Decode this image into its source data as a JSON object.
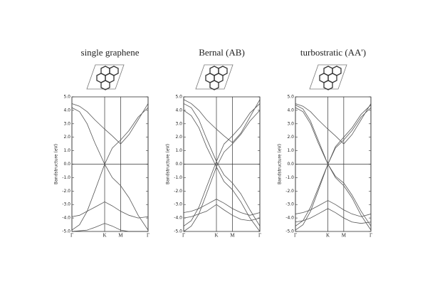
{
  "chart_data": [
    {
      "type": "line",
      "title": "single graphene",
      "ylabel": "Bandstructure (eV)",
      "x": [
        0,
        0.1,
        0.2,
        0.3,
        0.43,
        0.53,
        0.64,
        0.75,
        0.87,
        1
      ],
      "xlim": [
        0,
        1
      ],
      "xticks": [
        {
          "value": 0,
          "label": "Γ"
        },
        {
          "value": 0.43,
          "label": "K"
        },
        {
          "value": 0.64,
          "label": "M"
        },
        {
          "value": 1,
          "label": "Γ"
        }
      ],
      "ylim": [
        -5,
        5
      ],
      "yticks": [
        {
          "value": 5,
          "label": "5.0"
        },
        {
          "value": 4,
          "label": "4.0"
        },
        {
          "value": 3,
          "label": "3.0"
        },
        {
          "value": 2,
          "label": "2.0"
        },
        {
          "value": 1,
          "label": "1.0"
        },
        {
          "value": 0,
          "label": "0.0"
        },
        {
          "value": -1,
          "label": "-1.0"
        },
        {
          "value": -2,
          "label": "-2.0"
        },
        {
          "value": -3,
          "label": "-3.0"
        },
        {
          "value": -4,
          "label": "-4.0"
        },
        {
          "value": -5,
          "label": "-5.0"
        }
      ],
      "series": [
        {
          "color": "#555",
          "values": [
            -4.9,
            -4.5,
            -3.5,
            -2.0,
            0,
            -1.0,
            -1.6,
            -2.5,
            -3.8,
            -4.9
          ]
        },
        {
          "color": "#555",
          "values": [
            4.2,
            3.9,
            3.0,
            1.6,
            0,
            1.2,
            1.8,
            2.5,
            3.5,
            4.2
          ]
        },
        {
          "color": "#555",
          "values": [
            4.5,
            4.3,
            3.9,
            3.3,
            2.6,
            2.1,
            1.5,
            2.2,
            3.3,
            4.5
          ]
        },
        {
          "color": "#555",
          "values": [
            -3.9,
            -3.8,
            -3.5,
            -3.2,
            -2.8,
            -3.1,
            -3.5,
            -3.8,
            -4.0,
            -3.9
          ]
        },
        {
          "color": "#555",
          "values": [
            -5.0,
            -4.95,
            -4.9,
            -4.7,
            -4.4,
            -4.6,
            -4.9,
            -5.0,
            -5.0,
            -5.0
          ]
        }
      ]
    },
    {
      "type": "line",
      "title": "Bernal (AB)",
      "ylabel": "Bandstructure (eV)",
      "x": [
        0,
        0.1,
        0.2,
        0.3,
        0.43,
        0.53,
        0.64,
        0.75,
        0.87,
        1
      ],
      "xlim": [
        0,
        1
      ],
      "xticks": [
        {
          "value": 0,
          "label": "Γ"
        },
        {
          "value": 0.43,
          "label": "K"
        },
        {
          "value": 0.64,
          "label": "M"
        },
        {
          "value": 1,
          "label": "Γ"
        }
      ],
      "ylim": [
        -5,
        5
      ],
      "yticks": [
        {
          "value": 5,
          "label": "5.0"
        },
        {
          "value": 4,
          "label": "4.0"
        },
        {
          "value": 3,
          "label": "3.0"
        },
        {
          "value": 2,
          "label": "2.0"
        },
        {
          "value": 1,
          "label": "1.0"
        },
        {
          "value": 0,
          "label": "0.0"
        },
        {
          "value": -1,
          "label": "-1.0"
        },
        {
          "value": -2,
          "label": "-2.0"
        },
        {
          "value": -3,
          "label": "-3.0"
        },
        {
          "value": -4,
          "label": "-4.0"
        },
        {
          "value": -5,
          "label": "-5.0"
        }
      ],
      "series": [
        {
          "color": "#555",
          "values": [
            -5.0,
            -4.6,
            -3.7,
            -2.2,
            -0.2,
            -1.3,
            -1.9,
            -2.8,
            -4.0,
            -5.0
          ]
        },
        {
          "color": "#555",
          "values": [
            -4.6,
            -4.2,
            -3.2,
            -1.7,
            0.2,
            -0.8,
            -1.4,
            -2.2,
            -3.4,
            -4.6
          ]
        },
        {
          "color": "#555",
          "values": [
            4.0,
            3.6,
            2.7,
            1.3,
            -0.2,
            0.9,
            1.5,
            2.2,
            3.2,
            4.0
          ]
        },
        {
          "color": "#555",
          "values": [
            4.5,
            4.2,
            3.3,
            1.9,
            0.2,
            1.5,
            2.1,
            2.8,
            3.8,
            4.5
          ]
        },
        {
          "color": "#555",
          "values": [
            4.8,
            4.5,
            4.0,
            3.3,
            2.6,
            2.1,
            1.6,
            2.3,
            3.5,
            4.8
          ]
        },
        {
          "color": "#555",
          "values": [
            -3.6,
            -3.5,
            -3.3,
            -3.0,
            -2.6,
            -2.9,
            -3.3,
            -3.6,
            -3.8,
            -3.6
          ]
        },
        {
          "color": "#555",
          "values": [
            -4.0,
            -3.9,
            -3.7,
            -3.5,
            -3.0,
            -3.4,
            -3.8,
            -4.1,
            -4.2,
            -4.0
          ]
        }
      ]
    },
    {
      "type": "line",
      "title": "turbostratic (AA')",
      "ylabel": "Bandstructure (eV)",
      "x": [
        0,
        0.1,
        0.2,
        0.3,
        0.43,
        0.53,
        0.64,
        0.75,
        0.87,
        1
      ],
      "xlim": [
        0,
        1
      ],
      "xticks": [
        {
          "value": 0,
          "label": "Γ"
        },
        {
          "value": 0.43,
          "label": "K"
        },
        {
          "value": 0.64,
          "label": "M"
        },
        {
          "value": 1,
          "label": "Γ"
        }
      ],
      "ylim": [
        -5,
        5
      ],
      "yticks": [
        {
          "value": 5,
          "label": "5.0"
        },
        {
          "value": 4,
          "label": "4.0"
        },
        {
          "value": 3,
          "label": "3.0"
        },
        {
          "value": 2,
          "label": "2.0"
        },
        {
          "value": 1,
          "label": "1.0"
        },
        {
          "value": 0,
          "label": "0.0"
        },
        {
          "value": -1,
          "label": "-1.0"
        },
        {
          "value": -2,
          "label": "-2.0"
        },
        {
          "value": -3,
          "label": "-3.0"
        },
        {
          "value": -4,
          "label": "-4.0"
        },
        {
          "value": -5,
          "label": "-5.0"
        }
      ],
      "series": [
        {
          "color": "#555",
          "values": [
            -4.9,
            -4.5,
            -3.5,
            -2.0,
            0,
            -1.0,
            -1.6,
            -2.5,
            -3.8,
            -4.9
          ]
        },
        {
          "color": "#555",
          "values": [
            -4.6,
            -4.2,
            -3.2,
            -1.8,
            0,
            -0.9,
            -1.4,
            -2.3,
            -3.5,
            -4.6
          ]
        },
        {
          "color": "#555",
          "values": [
            4.2,
            3.9,
            3.0,
            1.6,
            0,
            1.2,
            1.8,
            2.5,
            3.5,
            4.2
          ]
        },
        {
          "color": "#555",
          "values": [
            4.4,
            4.1,
            3.2,
            1.8,
            0,
            1.3,
            2.0,
            2.7,
            3.7,
            4.4
          ]
        },
        {
          "color": "#555",
          "values": [
            4.5,
            4.3,
            3.9,
            3.3,
            2.6,
            2.1,
            1.5,
            2.2,
            3.3,
            4.5
          ]
        },
        {
          "color": "#555",
          "values": [
            -3.7,
            -3.6,
            -3.4,
            -3.1,
            -2.7,
            -3.0,
            -3.4,
            -3.7,
            -3.9,
            -3.7
          ]
        },
        {
          "color": "#555",
          "values": [
            -4.3,
            -4.2,
            -4.0,
            -3.7,
            -3.3,
            -3.6,
            -4.0,
            -4.3,
            -4.4,
            -4.3
          ]
        }
      ]
    }
  ]
}
